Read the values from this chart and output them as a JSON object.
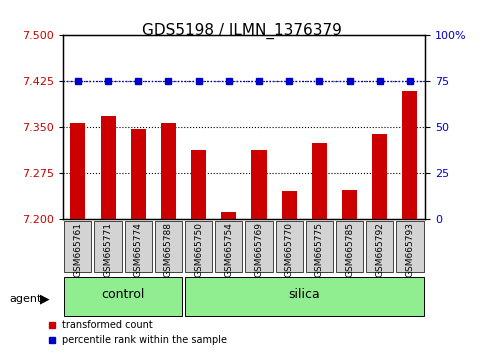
{
  "title": "GDS5198 / ILMN_1376379",
  "samples": [
    "GSM665761",
    "GSM665771",
    "GSM665774",
    "GSM665788",
    "GSM665750",
    "GSM665754",
    "GSM665769",
    "GSM665770",
    "GSM665775",
    "GSM665785",
    "GSM665792",
    "GSM665793"
  ],
  "bar_values": [
    7.357,
    7.368,
    7.347,
    7.357,
    7.313,
    7.213,
    7.313,
    7.247,
    7.325,
    7.248,
    7.34,
    7.41
  ],
  "percentile_values": [
    75,
    75,
    75,
    75,
    75,
    75,
    75,
    75,
    75,
    75,
    75,
    75
  ],
  "bar_color": "#cc0000",
  "percentile_color": "#0000cc",
  "ymin": 7.2,
  "ymax": 7.5,
  "y_ticks": [
    7.2,
    7.275,
    7.35,
    7.425,
    7.5
  ],
  "y2min": 0,
  "y2max": 100,
  "y2_ticks": [
    0,
    25,
    50,
    75,
    100
  ],
  "y2_tick_labels": [
    "0",
    "25",
    "50",
    "75",
    "100%"
  ],
  "groups": [
    {
      "label": "control",
      "start": 0,
      "end": 4,
      "color": "#90ee90"
    },
    {
      "label": "silica",
      "start": 4,
      "end": 12,
      "color": "#90ee90"
    }
  ],
  "group_label_prefix": "agent",
  "legend_items": [
    {
      "label": "transformed count",
      "color": "#cc0000",
      "marker": "s"
    },
    {
      "label": "percentile rank within the sample",
      "color": "#0000cc",
      "marker": "s"
    }
  ],
  "grid_color": "#000000",
  "bg_color": "#ffffff",
  "bar_width": 0.5,
  "tick_label_color_left": "#cc0000",
  "tick_label_color_right": "#0000cc"
}
